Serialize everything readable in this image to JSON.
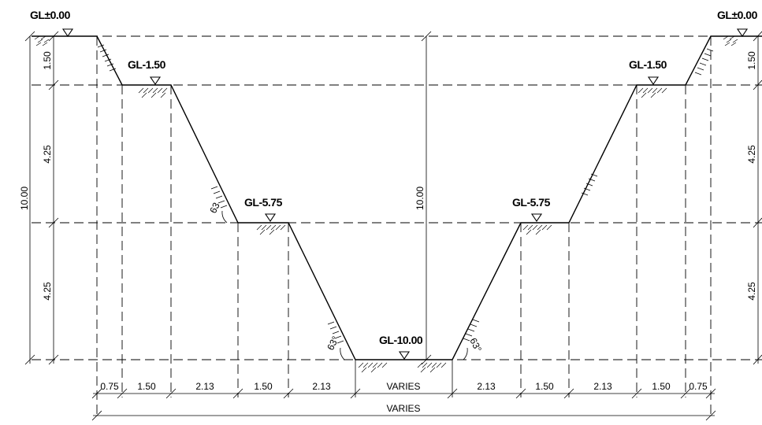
{
  "levels": {
    "top_left": "GL±0.00",
    "top_right": "GL±0.00",
    "l1_left": "GL-1.50",
    "l1_right": "GL-1.50",
    "l2_left": "GL-5.75",
    "l2_right": "GL-5.75",
    "bottom": "GL-10.00"
  },
  "vertical_dims": {
    "left_150": "1.50",
    "left_425a": "4.25",
    "left_425b": "4.25",
    "left_total": "10.00",
    "center_total": "10.00",
    "right_150": "1.50",
    "right_425a": "4.25",
    "right_425b": "4.25"
  },
  "angles": {
    "left_upper": "63",
    "left_lower": "63°",
    "right_lower": "63°"
  },
  "horizontal_dims": {
    "d1": "0.75",
    "d2": "1.50",
    "d3": "2.13",
    "d4": "1.50",
    "d5": "2.13",
    "d6": "VARIES",
    "d7": "2.13",
    "d8": "1.50",
    "d9": "2.13",
    "d10": "1.50",
    "d11": "0.75",
    "overall": "VARIES"
  }
}
